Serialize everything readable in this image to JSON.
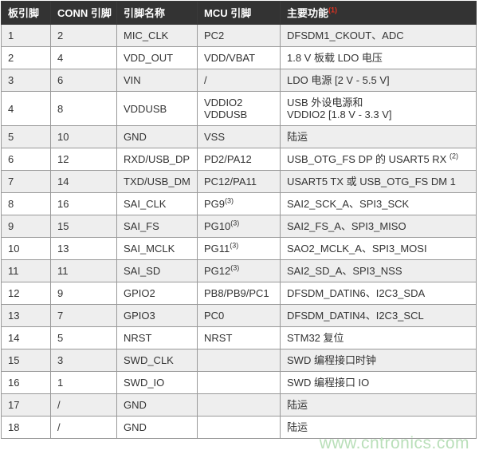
{
  "table": {
    "headers": [
      "板引脚",
      "CONN 引脚",
      "引脚名称",
      "MCU 引脚",
      "主要功能"
    ],
    "header_footnote": "(1)",
    "rows": [
      {
        "board": "1",
        "conn": "2",
        "name": "MIC_CLK",
        "mcu": "PC2",
        "func": "DFSDM1_CKOUT、ADC"
      },
      {
        "board": "2",
        "conn": "4",
        "name": "VDD_OUT",
        "mcu": "VDD/VBAT",
        "func": "1.8 V 板载 LDO 电压"
      },
      {
        "board": "3",
        "conn": "6",
        "name": "VIN",
        "mcu": "/",
        "func": "LDO 电源 [2 V - 5.5 V]"
      },
      {
        "board": "4",
        "conn": "8",
        "name": "VDDUSB",
        "mcu": "VDDIO2\nVDDUSB",
        "func": "USB 外设电源和\nVDDIO2 [1.8 V - 3.3 V]"
      },
      {
        "board": "5",
        "conn": "10",
        "name": "GND",
        "mcu": "VSS",
        "func": "陆运"
      },
      {
        "board": "6",
        "conn": "12",
        "name": "RXD/USB_DP",
        "mcu": "PD2/PA12",
        "func": "USB_OTG_FS DP 的 USART5 RX ",
        "func_sup": "(2)"
      },
      {
        "board": "7",
        "conn": "14",
        "name": "TXD/USB_DM",
        "mcu": "PC12/PA11",
        "func": "USART5 TX 或 USB_OTG_FS DM 1"
      },
      {
        "board": "8",
        "conn": "16",
        "name": "SAI_CLK",
        "mcu": "PG9",
        "mcu_sup": "(3)",
        "func": "SAI2_SCK_A、SPI3_SCK"
      },
      {
        "board": "9",
        "conn": "15",
        "name": "SAI_FS",
        "mcu": "PG10",
        "mcu_sup": "(3)",
        "func": "SAI2_FS_A、SPI3_MISO"
      },
      {
        "board": "10",
        "conn": "13",
        "name": "SAI_MCLK",
        "mcu": "PG11",
        "mcu_sup": "(3)",
        "func": "SAO2_MCLK_A、SPI3_MOSI"
      },
      {
        "board": "11",
        "conn": "11",
        "name": "SAI_SD",
        "mcu": "PG12",
        "mcu_sup": "(3)",
        "func": "SAI2_SD_A、SPI3_NSS"
      },
      {
        "board": "12",
        "conn": "9",
        "name": "GPIO2",
        "mcu": "PB8/PB9/PC1",
        "func": "DFSDM_DATIN6、I2C3_SDA"
      },
      {
        "board": "13",
        "conn": "7",
        "name": "GPIO3",
        "mcu": "PC0",
        "func": "DFSDM_DATIN4、I2C3_SCL"
      },
      {
        "board": "14",
        "conn": "5",
        "name": "NRST",
        "mcu": "NRST",
        "func": "STM32 复位"
      },
      {
        "board": "15",
        "conn": "3",
        "name": "SWD_CLK",
        "mcu": "",
        "func": "SWD 编程接口时钟"
      },
      {
        "board": "16",
        "conn": "1",
        "name": "SWD_IO",
        "mcu": "",
        "func": "SWD 编程接口 IO"
      },
      {
        "board": "17",
        "conn": "/",
        "name": "GND",
        "mcu": "",
        "func": "陆运"
      },
      {
        "board": "18",
        "conn": "/",
        "name": "GND",
        "mcu": "",
        "func": "陆运"
      }
    ]
  },
  "watermark": {
    "text": "www.cntronics.com"
  },
  "colors": {
    "header_bg": "#333333",
    "header_text": "#ffffff",
    "footnote_red": "#e03222",
    "row_alt_bg": "#eeeeee",
    "row_bg": "#ffffff",
    "border": "#999999",
    "body_text": "#333333",
    "watermark_green": "#b9dfb9"
  }
}
